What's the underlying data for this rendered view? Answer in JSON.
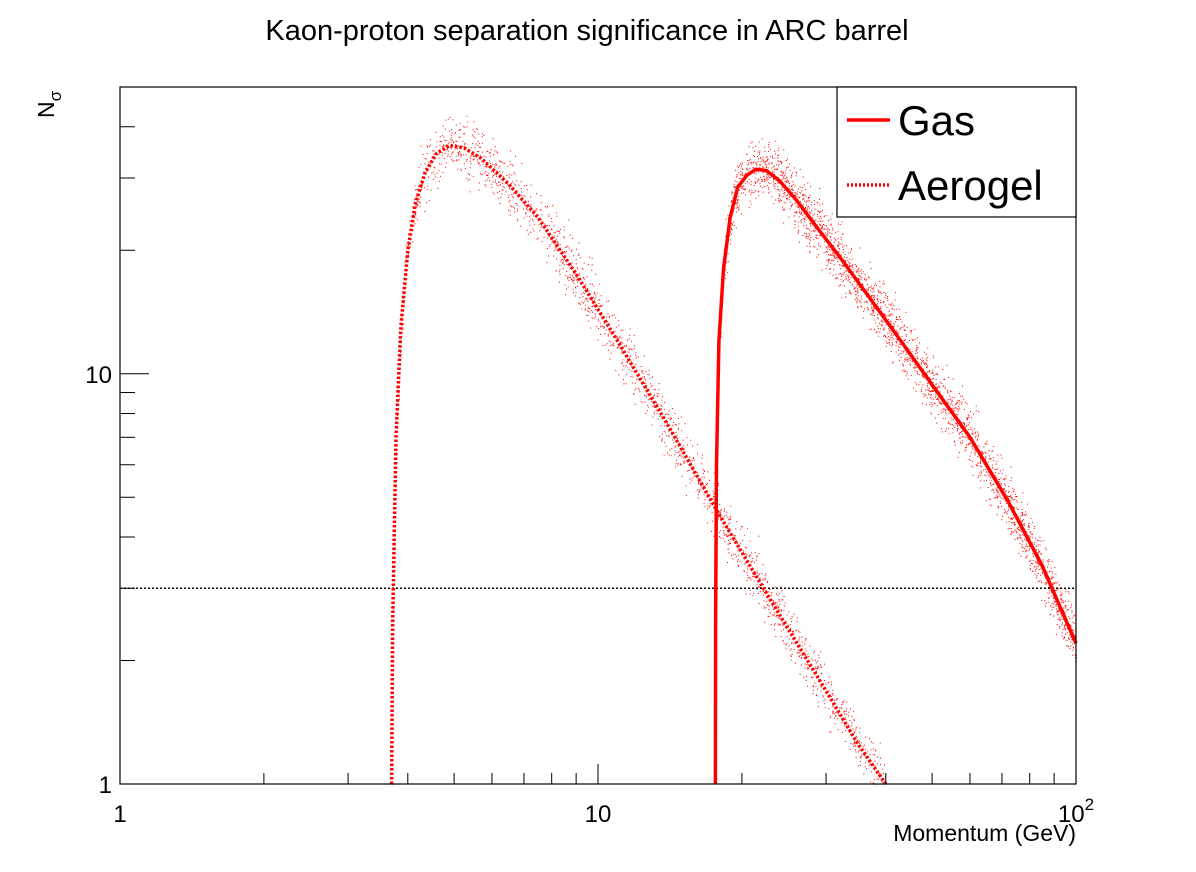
{
  "chart_data": {
    "type": "line",
    "title": "Kaon-proton separation significance in ARC barrel",
    "xlabel": "Momentum (GeV)",
    "ylabel_main": "N",
    "ylabel_sub": "σ",
    "x_scale": "log",
    "y_scale": "log",
    "xlim": [
      1,
      100
    ],
    "ylim": [
      1,
      50
    ],
    "x_ticks": [
      {
        "value": 1,
        "label": "1"
      },
      {
        "value": 10,
        "label": "10"
      },
      {
        "value": 100,
        "label": "10",
        "sup": "2"
      }
    ],
    "y_ticks": [
      {
        "value": 1,
        "label": "1"
      },
      {
        "value": 10,
        "label": "10"
      }
    ],
    "grid": false,
    "legend_position": "top-right",
    "threshold": {
      "value": 3,
      "style": "dotted",
      "color": "#000000"
    },
    "series": [
      {
        "name": "Gas",
        "style": "solid",
        "color": "#ff0000",
        "x": [
          17.6,
          17.62,
          17.7,
          17.9,
          18.3,
          18.9,
          19.6,
          20.5,
          21.4,
          22.5,
          24.0,
          26.0,
          28.5,
          32.0,
          36.0,
          42.0,
          50.0,
          60.0,
          72.0,
          85.0,
          100.0
        ],
        "y": [
          1.0,
          2.5,
          6.0,
          12.0,
          18.0,
          24.0,
          28.5,
          30.5,
          31.5,
          31.3,
          29.5,
          26.5,
          23.0,
          19.3,
          16.0,
          12.5,
          9.4,
          7.0,
          4.9,
          3.4,
          2.2
        ]
      },
      {
        "name": "Aerogel",
        "style": "dotted",
        "color": "#ff0000",
        "x": [
          3.7,
          3.72,
          3.78,
          3.87,
          4.0,
          4.15,
          4.35,
          4.6,
          4.9,
          5.25,
          5.7,
          6.5,
          7.5,
          9.0,
          11.0,
          14.0,
          18.0,
          23.0,
          29.0,
          35.0,
          40.0
        ],
        "y": [
          1.0,
          2.5,
          7.0,
          13.0,
          20.0,
          26.0,
          31.0,
          34.5,
          36.0,
          35.5,
          33.5,
          29.0,
          24.0,
          17.5,
          12.0,
          7.5,
          4.5,
          2.8,
          1.8,
          1.25,
          1.0
        ]
      }
    ],
    "scatter_bands": [
      {
        "series": "Gas",
        "density": "high",
        "color": "#ff0000"
      },
      {
        "series": "Aerogel",
        "density": "medium",
        "color": "#ff0000"
      }
    ]
  }
}
